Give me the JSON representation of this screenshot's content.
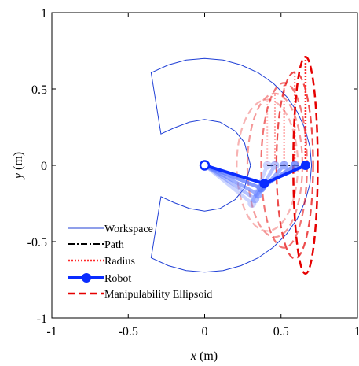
{
  "chart_data": {
    "type": "line",
    "title": "",
    "xlabel": "x",
    "xlabel_unit": " (m)",
    "ylabel": "y",
    "ylabel_unit": " (m)",
    "xlim": [
      -1,
      1
    ],
    "ylim": [
      -1,
      1
    ],
    "x_ticks": [
      -1,
      -0.5,
      0,
      0.5,
      1
    ],
    "x_tick_labels": [
      "-1",
      "-0.5",
      "0",
      "0.5",
      "1"
    ],
    "y_ticks": [
      -1,
      -0.5,
      0,
      0.5,
      1
    ],
    "y_tick_labels": [
      "-1",
      "-0.5",
      "0",
      "0.5",
      "1"
    ],
    "grid": false,
    "legend_position": "bottom-left",
    "colors": {
      "workspace": "#1f3fd6",
      "path": "#000000",
      "radius": "#ff2a2a",
      "robot": "#0a2cff",
      "ellipsoid": "#e60000"
    },
    "series": [
      {
        "name": "Workspace",
        "style": "solid-thin",
        "x": [
          0,
          0.121,
          0.238,
          0.35,
          0.45,
          0.536,
          0.606,
          0.657,
          0.689,
          0.7,
          0.689,
          0.657,
          0.606,
          0.536,
          0.45,
          0.35,
          0.238,
          0.121,
          0,
          -0.121,
          -0.238,
          -0.35,
          -0.286,
          -0.2,
          -0.1,
          0,
          0.1,
          0.2,
          0.26,
          0.3,
          0.26,
          0.2,
          0.1,
          0,
          -0.1,
          -0.2,
          -0.286,
          -0.35,
          -0.238,
          -0.121,
          0
        ],
        "y": [
          0.7,
          0.689,
          0.657,
          0.606,
          0.536,
          0.45,
          0.35,
          0.238,
          0.121,
          0,
          -0.121,
          -0.238,
          -0.35,
          -0.45,
          -0.536,
          -0.606,
          -0.657,
          -0.689,
          -0.7,
          -0.689,
          -0.657,
          -0.606,
          -0.205,
          -0.245,
          -0.283,
          -0.3,
          -0.283,
          -0.224,
          -0.15,
          0,
          0.15,
          0.224,
          0.283,
          0.3,
          0.283,
          0.245,
          0.205,
          0.606,
          0.657,
          0.689,
          0.7
        ]
      },
      {
        "name": "Path",
        "style": "dash-dot",
        "x": [
          0.41,
          0.52,
          0.66
        ],
        "y": [
          0,
          0,
          0
        ]
      },
      {
        "name": "Radius",
        "style": "dotted",
        "x": [
          0.66,
          0.66
        ],
        "y": [
          0,
          0.71
        ]
      },
      {
        "name": "Robot",
        "style": "thick-markers",
        "x": [
          0,
          0.39,
          0.66
        ],
        "y": [
          0,
          -0.12,
          0
        ]
      },
      {
        "name": "Manipulability Ellipsoid",
        "style": "dashed",
        "center": [
          0.66,
          0
        ],
        "semi_x": 0.08,
        "semi_y": 0.71
      }
    ],
    "ghost_robot_poses": [
      {
        "x": [
          0,
          0.31,
          0.41
        ],
        "y": [
          0,
          -0.25,
          0
        ],
        "opacity": 0.3
      },
      {
        "x": [
          0,
          0.33,
          0.46
        ],
        "y": [
          0,
          -0.22,
          0
        ],
        "opacity": 0.45
      },
      {
        "x": [
          0,
          0.35,
          0.52
        ],
        "y": [
          0,
          -0.19,
          0
        ],
        "opacity": 0.6
      },
      {
        "x": [
          0,
          0.37,
          0.59
        ],
        "y": [
          0,
          -0.15,
          0
        ],
        "opacity": 0.75
      }
    ],
    "ghost_ellipsoids": [
      {
        "center": [
          0.41,
          0
        ],
        "semi_x": 0.2,
        "semi_y": 0.43,
        "radius_top": 0.43,
        "opacity": 0.3
      },
      {
        "center": [
          0.46,
          0
        ],
        "semi_x": 0.18,
        "semi_y": 0.47,
        "radius_top": 0.47,
        "opacity": 0.4
      },
      {
        "center": [
          0.52,
          0
        ],
        "semi_x": 0.15,
        "semi_y": 0.54,
        "radius_top": 0.54,
        "opacity": 0.55
      },
      {
        "center": [
          0.59,
          0
        ],
        "semi_x": 0.12,
        "semi_y": 0.61,
        "radius_top": 0.61,
        "opacity": 0.7
      }
    ]
  }
}
